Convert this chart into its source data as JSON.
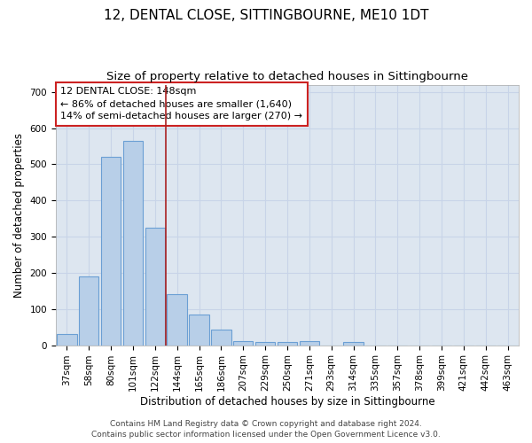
{
  "title": "12, DENTAL CLOSE, SITTINGBOURNE, ME10 1DT",
  "subtitle": "Size of property relative to detached houses in Sittingbourne",
  "xlabel": "Distribution of detached houses by size in Sittingbourne",
  "ylabel": "Number of detached properties",
  "categories": [
    "37sqm",
    "58sqm",
    "80sqm",
    "101sqm",
    "122sqm",
    "144sqm",
    "165sqm",
    "186sqm",
    "207sqm",
    "229sqm",
    "250sqm",
    "271sqm",
    "293sqm",
    "314sqm",
    "335sqm",
    "357sqm",
    "378sqm",
    "399sqm",
    "421sqm",
    "442sqm",
    "463sqm"
  ],
  "values": [
    32,
    190,
    520,
    565,
    325,
    140,
    85,
    42,
    12,
    10,
    10,
    12,
    0,
    8,
    0,
    0,
    0,
    0,
    0,
    0,
    0
  ],
  "bar_color": "#b8cfe8",
  "bar_edge_color": "#6b9fd4",
  "vline_x": 4.5,
  "vline_color": "#aa2222",
  "annotation_line1": "12 DENTAL CLOSE: 148sqm",
  "annotation_line2": "← 86% of detached houses are smaller (1,640)",
  "annotation_line3": "14% of semi-detached houses are larger (270) →",
  "annotation_box_color": "white",
  "annotation_box_edge_color": "#cc2222",
  "ylim": [
    0,
    720
  ],
  "yticks": [
    0,
    100,
    200,
    300,
    400,
    500,
    600,
    700
  ],
  "grid_color": "#c8d4e8",
  "bg_color": "#dde6f0",
  "footer": "Contains HM Land Registry data © Crown copyright and database right 2024.\nContains public sector information licensed under the Open Government Licence v3.0.",
  "title_fontsize": 11,
  "subtitle_fontsize": 9.5,
  "xlabel_fontsize": 8.5,
  "ylabel_fontsize": 8.5,
  "tick_fontsize": 7.5,
  "annotation_fontsize": 8,
  "footer_fontsize": 6.5
}
